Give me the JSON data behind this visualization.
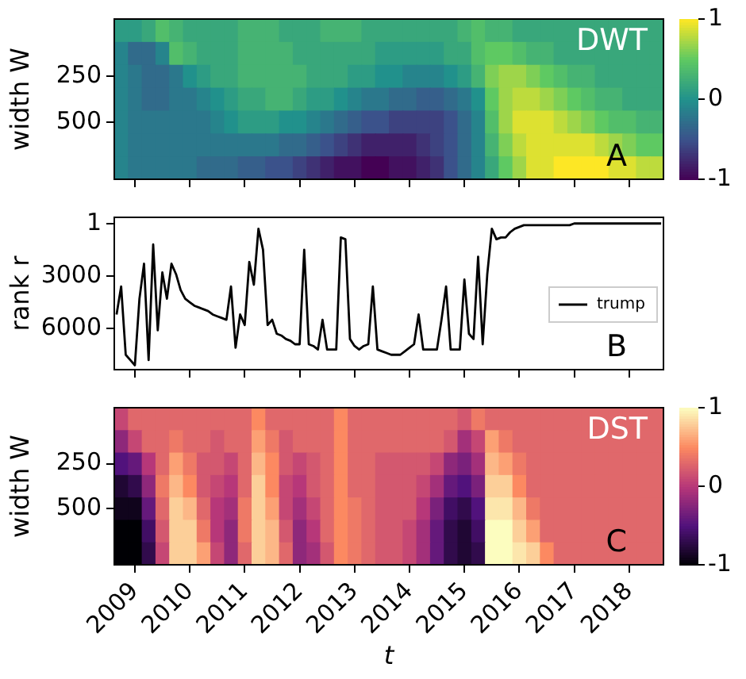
{
  "chart_data": [
    {
      "type": "heatmap",
      "ylabel": "width W",
      "annotations": [
        "DWT",
        "A"
      ],
      "tick_labels": "y",
      "categories": [
        null,
        "2009",
        null,
        null,
        null,
        "2010",
        null,
        null,
        null,
        "2011",
        null,
        null,
        null,
        "2012",
        null,
        null,
        null,
        "2013",
        null,
        null,
        null,
        "2014",
        null,
        null,
        null,
        "2015",
        null,
        null,
        null,
        "2016",
        null,
        null,
        null,
        "2017",
        null,
        null,
        null,
        "2018",
        null,
        null
      ],
      "y_categories": [
        null,
        null,
        "250",
        null,
        "500",
        null,
        null
      ],
      "clim": [
        -1,
        1
      ],
      "cticks": [
        -1,
        0,
        1
      ],
      "cells": [
        [
          0.1,
          0.1,
          0.2,
          0.4,
          0.3,
          0.2,
          0.2,
          0.2,
          0.2,
          0.3,
          0.3,
          0.3,
          0.2,
          0.2,
          0.2,
          0.3,
          0.3,
          0.3,
          0.2,
          0.2,
          0.2,
          0.2,
          0.2,
          0.2,
          0.2,
          0.3,
          0.4,
          0.3,
          0.3,
          0.2,
          0.2,
          0.2,
          0.2,
          0.2,
          0.2,
          0.2,
          0.2,
          0.2,
          0.2,
          0.2
        ],
        [
          -0.1,
          -0.3,
          -0.3,
          -0.1,
          0.4,
          0.3,
          0.2,
          0.2,
          0.2,
          0.3,
          0.3,
          0.3,
          0.3,
          0.2,
          0.2,
          0.2,
          0.2,
          0.2,
          0.2,
          0.1,
          0.1,
          0.1,
          0.1,
          0.1,
          0.2,
          0.2,
          0.4,
          0.5,
          0.5,
          0.4,
          0.3,
          0.3,
          0.2,
          0.2,
          0.2,
          0.2,
          0.2,
          0.2,
          0.2,
          0.2
        ],
        [
          -0.1,
          -0.2,
          -0.3,
          -0.3,
          -0.2,
          0.0,
          0.1,
          0.2,
          0.2,
          0.3,
          0.3,
          0.3,
          0.3,
          0.3,
          0.2,
          0.2,
          0.2,
          0.1,
          0.1,
          0.0,
          0.0,
          -0.1,
          -0.1,
          -0.1,
          0.0,
          0.1,
          0.3,
          0.6,
          0.7,
          0.7,
          0.6,
          0.5,
          0.4,
          0.3,
          0.3,
          0.2,
          0.2,
          0.2,
          0.2,
          0.2
        ],
        [
          -0.1,
          -0.2,
          -0.3,
          -0.3,
          -0.2,
          -0.2,
          -0.1,
          0.0,
          0.1,
          0.2,
          0.2,
          0.3,
          0.3,
          0.2,
          0.1,
          0.1,
          0.0,
          -0.1,
          -0.2,
          -0.2,
          -0.3,
          -0.3,
          -0.4,
          -0.4,
          -0.3,
          -0.2,
          0.0,
          0.5,
          0.7,
          0.8,
          0.8,
          0.7,
          0.6,
          0.5,
          0.4,
          0.3,
          0.3,
          0.2,
          0.2,
          0.2
        ],
        [
          -0.1,
          -0.2,
          -0.2,
          -0.2,
          -0.2,
          -0.2,
          -0.2,
          -0.1,
          0.0,
          0.1,
          0.1,
          0.1,
          0.0,
          0.0,
          -0.1,
          -0.2,
          -0.3,
          -0.4,
          -0.5,
          -0.5,
          -0.6,
          -0.6,
          -0.6,
          -0.6,
          -0.5,
          -0.3,
          -0.1,
          0.4,
          0.7,
          0.9,
          0.9,
          0.9,
          0.8,
          0.7,
          0.6,
          0.5,
          0.4,
          0.4,
          0.3,
          0.3
        ],
        [
          -0.1,
          -0.2,
          -0.2,
          -0.2,
          -0.2,
          -0.2,
          -0.2,
          -0.2,
          -0.2,
          -0.2,
          -0.2,
          -0.2,
          -0.3,
          -0.3,
          -0.4,
          -0.5,
          -0.6,
          -0.7,
          -0.8,
          -0.8,
          -0.8,
          -0.8,
          -0.7,
          -0.6,
          -0.5,
          -0.3,
          -0.1,
          0.3,
          0.6,
          0.8,
          0.9,
          0.9,
          0.9,
          0.9,
          0.9,
          0.8,
          0.7,
          0.6,
          0.5,
          0.5
        ],
        [
          -0.1,
          -0.2,
          -0.2,
          -0.2,
          -0.2,
          -0.2,
          -0.3,
          -0.3,
          -0.3,
          -0.4,
          -0.4,
          -0.5,
          -0.5,
          -0.6,
          -0.7,
          -0.8,
          -0.9,
          -0.9,
          -1.0,
          -1.0,
          -0.9,
          -0.9,
          -0.8,
          -0.7,
          -0.5,
          -0.3,
          -0.1,
          0.2,
          0.5,
          0.7,
          0.9,
          0.9,
          1.0,
          1.0,
          1.0,
          1.0,
          0.9,
          0.9,
          0.8,
          0.8
        ]
      ]
    },
    {
      "type": "line",
      "ylabel": "rank r",
      "annotations": [
        "B"
      ],
      "tick_labels": "y",
      "legend": "right",
      "marker": "none",
      "categories": [
        null,
        null,
        null,
        null,
        "2009",
        null,
        null,
        null,
        null,
        null,
        null,
        null,
        null,
        null,
        null,
        null,
        "2010",
        null,
        null,
        null,
        null,
        null,
        null,
        null,
        null,
        null,
        null,
        null,
        "2011",
        null,
        null,
        null,
        null,
        null,
        null,
        null,
        null,
        null,
        null,
        null,
        "2012",
        null,
        null,
        null,
        null,
        null,
        null,
        null,
        null,
        null,
        null,
        null,
        "2013",
        null,
        null,
        null,
        null,
        null,
        null,
        null,
        null,
        null,
        null,
        null,
        "2014",
        null,
        null,
        null,
        null,
        null,
        null,
        null,
        null,
        null,
        null,
        null,
        "2015",
        null,
        null,
        null,
        null,
        null,
        null,
        null,
        null,
        null,
        null,
        null,
        "2016",
        null,
        null,
        null,
        null,
        null,
        null,
        null,
        null,
        null,
        null,
        null,
        "2017",
        null,
        null,
        null,
        null,
        null,
        null,
        null,
        null,
        null,
        null,
        null,
        "2018",
        null,
        null,
        null,
        null,
        null,
        null,
        null
      ],
      "ylim": [
        8350,
        -350
      ],
      "yticks": [
        1,
        3000,
        6000
      ],
      "series": [
        {
          "name": "trump",
          "color": "#000000",
          "values": [
            5200,
            3600,
            7500,
            7800,
            8100,
            4300,
            2300,
            7800,
            1200,
            6100,
            2800,
            4300,
            2300,
            2900,
            3800,
            4300,
            4500,
            4700,
            4800,
            4900,
            5000,
            5200,
            5300,
            5400,
            5500,
            3600,
            7100,
            5200,
            5800,
            2200,
            3500,
            300,
            1500,
            5800,
            5500,
            6300,
            6400,
            6600,
            6700,
            6900,
            6900,
            1500,
            6900,
            7000,
            7200,
            5500,
            7200,
            7200,
            7200,
            800,
            900,
            6600,
            7000,
            7200,
            7000,
            6900,
            3600,
            7200,
            7300,
            7400,
            7500,
            7500,
            7500,
            7300,
            7100,
            6900,
            5200,
            7200,
            7200,
            7200,
            7200,
            5500,
            3600,
            7200,
            7200,
            7200,
            3200,
            6300,
            6600,
            1900,
            6900,
            2900,
            300,
            900,
            800,
            800,
            500,
            300,
            200,
            100,
            100,
            100,
            100,
            100,
            100,
            100,
            100,
            100,
            100,
            100,
            1,
            1,
            1,
            1,
            1,
            1,
            1,
            1,
            1,
            1,
            1,
            1,
            1,
            1,
            1,
            1,
            1,
            1,
            1,
            1
          ]
        }
      ]
    },
    {
      "type": "heatmap",
      "ylabel": "width W",
      "xlabel": "t",
      "annotations": [
        "DST",
        "C"
      ],
      "categories": [
        null,
        "2009",
        null,
        null,
        null,
        "2010",
        null,
        null,
        null,
        "2011",
        null,
        null,
        null,
        "2012",
        null,
        null,
        null,
        "2013",
        null,
        null,
        null,
        "2014",
        null,
        null,
        null,
        "2015",
        null,
        null,
        null,
        "2016",
        null,
        null,
        null,
        "2017",
        null,
        null,
        null,
        "2018",
        null,
        null
      ],
      "y_categories": [
        null,
        null,
        "250",
        null,
        "500",
        null,
        null
      ],
      "clim": [
        -1,
        1
      ],
      "cticks": [
        -1,
        0,
        1
      ],
      "cells": [
        [
          0.1,
          0.3,
          0.3,
          0.3,
          0.3,
          0.3,
          0.3,
          0.3,
          0.3,
          0.3,
          0.5,
          0.3,
          0.3,
          0.3,
          0.3,
          0.3,
          0.5,
          0.3,
          0.3,
          0.3,
          0.3,
          0.3,
          0.3,
          0.3,
          0.3,
          0.2,
          0.4,
          0.3,
          0.3,
          0.3,
          0.3,
          0.3,
          0.3,
          0.3,
          0.3,
          0.3,
          0.3,
          0.3,
          0.3,
          0.3
        ],
        [
          -0.2,
          0.1,
          0.3,
          0.3,
          0.4,
          0.3,
          0.3,
          0.2,
          0.3,
          0.3,
          0.6,
          0.4,
          0.2,
          0.3,
          0.3,
          0.3,
          0.5,
          0.3,
          0.3,
          0.3,
          0.3,
          0.3,
          0.3,
          0.3,
          0.2,
          -0.1,
          0.1,
          0.6,
          0.4,
          0.3,
          0.3,
          0.3,
          0.3,
          0.3,
          0.3,
          0.3,
          0.3,
          0.3,
          0.3,
          0.3
        ],
        [
          -0.5,
          -0.4,
          0.0,
          0.3,
          0.6,
          0.4,
          0.2,
          0.2,
          0.1,
          0.3,
          0.7,
          0.5,
          0.2,
          0.1,
          0.2,
          0.3,
          0.5,
          0.3,
          0.3,
          0.2,
          0.2,
          0.2,
          0.2,
          0.1,
          -0.2,
          -0.3,
          -0.1,
          0.7,
          0.6,
          0.4,
          0.3,
          0.3,
          0.3,
          0.3,
          0.3,
          0.3,
          0.3,
          0.3,
          0.3,
          0.3
        ],
        [
          -0.8,
          -0.7,
          -0.2,
          0.4,
          0.7,
          0.5,
          0.2,
          0.1,
          0.0,
          0.3,
          0.8,
          0.5,
          0.1,
          0.0,
          0.2,
          0.3,
          0.5,
          0.3,
          0.3,
          0.2,
          0.2,
          0.2,
          0.1,
          -0.1,
          -0.4,
          -0.5,
          -0.3,
          0.8,
          0.8,
          0.5,
          0.3,
          0.3,
          0.3,
          0.3,
          0.3,
          0.3,
          0.3,
          0.3,
          0.3,
          0.3
        ],
        [
          -0.9,
          -0.9,
          -0.4,
          0.3,
          0.8,
          0.7,
          0.3,
          0.0,
          -0.1,
          0.4,
          0.8,
          0.6,
          0.1,
          -0.1,
          0.1,
          0.3,
          0.5,
          0.4,
          0.3,
          0.2,
          0.2,
          0.2,
          0.0,
          -0.3,
          -0.6,
          -0.7,
          -0.5,
          0.9,
          0.9,
          0.7,
          0.4,
          0.3,
          0.3,
          0.3,
          0.3,
          0.3,
          0.3,
          0.3,
          0.3,
          0.3
        ],
        [
          -1.0,
          -1.0,
          -0.6,
          0.2,
          0.8,
          0.8,
          0.4,
          0.0,
          -0.2,
          0.4,
          0.8,
          0.7,
          0.2,
          -0.2,
          0.0,
          0.3,
          0.5,
          0.4,
          0.3,
          0.2,
          0.2,
          0.1,
          -0.1,
          -0.4,
          -0.7,
          -0.8,
          -0.6,
          1.0,
          1.0,
          0.8,
          0.6,
          0.3,
          0.3,
          0.3,
          0.3,
          0.3,
          0.3,
          0.3,
          0.3,
          0.3
        ],
        [
          -1.0,
          -1.0,
          -0.7,
          0.1,
          0.8,
          0.8,
          0.6,
          0.1,
          -0.2,
          0.3,
          0.8,
          0.7,
          0.3,
          -0.2,
          -0.1,
          0.2,
          0.5,
          0.4,
          0.3,
          0.2,
          0.2,
          0.1,
          -0.1,
          -0.4,
          -0.7,
          -0.8,
          -0.7,
          1.0,
          1.0,
          0.9,
          0.8,
          0.5,
          0.3,
          0.3,
          0.3,
          0.3,
          0.3,
          0.3,
          0.3,
          0.3
        ]
      ]
    }
  ]
}
